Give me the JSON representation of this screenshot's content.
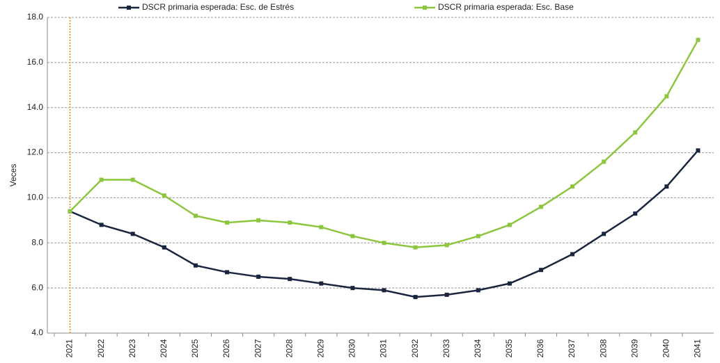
{
  "chart_data": {
    "type": "line",
    "y_label": "Veces",
    "categories": [
      "2021",
      "2022",
      "2023",
      "2024",
      "2025",
      "2026",
      "2027",
      "2028",
      "2029",
      "2030",
      "2031",
      "2032",
      "2033",
      "2034",
      "2035",
      "2036",
      "2037",
      "2038",
      "2039",
      "2040",
      "2041"
    ],
    "series": [
      {
        "name": "DSCR primaria esperada: Esc. de Estrés",
        "color": "#1a2540",
        "values": [
          9.4,
          8.8,
          8.4,
          7.8,
          7.0,
          6.7,
          6.5,
          6.4,
          6.2,
          6.0,
          5.9,
          5.6,
          5.7,
          5.9,
          6.2,
          6.8,
          7.5,
          8.4,
          9.3,
          10.5,
          12.1
        ]
      },
      {
        "name": "DSCR primaria esperada: Esc. Base",
        "color": "#8cc63f",
        "values": [
          9.4,
          10.8,
          10.8,
          10.1,
          9.2,
          8.9,
          9.0,
          8.9,
          8.7,
          8.3,
          8.0,
          7.8,
          7.9,
          8.3,
          8.8,
          9.6,
          10.5,
          11.6,
          12.9,
          14.5,
          17.0
        ]
      }
    ],
    "ylim": [
      4,
      18
    ],
    "yticks": [
      {
        "value": 4,
        "label": "4.0"
      },
      {
        "value": 6,
        "label": "6.0"
      },
      {
        "value": 8,
        "label": "8.0"
      },
      {
        "value": 10,
        "label": "10.0"
      },
      {
        "value": 12,
        "label": "12.0"
      },
      {
        "value": 14,
        "label": "14.0"
      },
      {
        "value": 16,
        "label": "16.0"
      },
      {
        "value": 18,
        "label": "18.0"
      }
    ],
    "grid": true,
    "legend": "top"
  }
}
